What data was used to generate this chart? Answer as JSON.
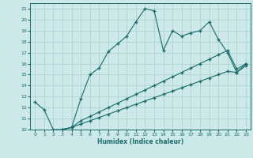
{
  "xlabel": "Humidex (Indice chaleur)",
  "background_color": "#cce8e8",
  "grid_color": "#aacece",
  "line_color": "#1a6b6b",
  "xlim": [
    -0.5,
    23.5
  ],
  "ylim": [
    10,
    21.5
  ],
  "xticks": [
    0,
    1,
    2,
    3,
    4,
    5,
    6,
    7,
    8,
    9,
    10,
    11,
    12,
    13,
    14,
    15,
    16,
    17,
    18,
    19,
    20,
    21,
    22,
    23
  ],
  "yticks": [
    10,
    11,
    12,
    13,
    14,
    15,
    16,
    17,
    18,
    19,
    20,
    21
  ],
  "series": {
    "line1": {
      "x": [
        0,
        1,
        2,
        3,
        4,
        5,
        6,
        7,
        8,
        9,
        10,
        11,
        12,
        13,
        14,
        15,
        16,
        17,
        18,
        19,
        20,
        21,
        22,
        23
      ],
      "y": [
        12.5,
        11.8,
        10.0,
        10.0,
        10.2,
        12.8,
        15.0,
        15.6,
        17.1,
        17.8,
        18.5,
        19.8,
        21.0,
        20.8,
        17.2,
        19.0,
        18.5,
        18.8,
        19.0,
        19.8,
        18.2,
        17.0,
        15.2,
        16.0
      ]
    },
    "line2": {
      "x": [
        3,
        4,
        5,
        6,
        7,
        8,
        9,
        10,
        11,
        12,
        13,
        14,
        15,
        16,
        17,
        18,
        19,
        20,
        21,
        22,
        23
      ],
      "y": [
        10.0,
        10.2,
        10.8,
        11.2,
        11.6,
        12.0,
        12.4,
        12.8,
        13.2,
        13.6,
        14.0,
        14.4,
        14.8,
        15.2,
        15.6,
        16.0,
        16.4,
        16.8,
        17.2,
        15.5,
        16.0
      ]
    },
    "line3": {
      "x": [
        3,
        4,
        5,
        6,
        7,
        8,
        9,
        10,
        11,
        12,
        13,
        14,
        15,
        16,
        17,
        18,
        19,
        20,
        21,
        22,
        23
      ],
      "y": [
        10.0,
        10.2,
        10.5,
        10.8,
        11.1,
        11.4,
        11.7,
        12.0,
        12.3,
        12.6,
        12.9,
        13.2,
        13.5,
        13.8,
        14.1,
        14.4,
        14.7,
        15.0,
        15.3,
        15.2,
        15.8
      ]
    }
  }
}
